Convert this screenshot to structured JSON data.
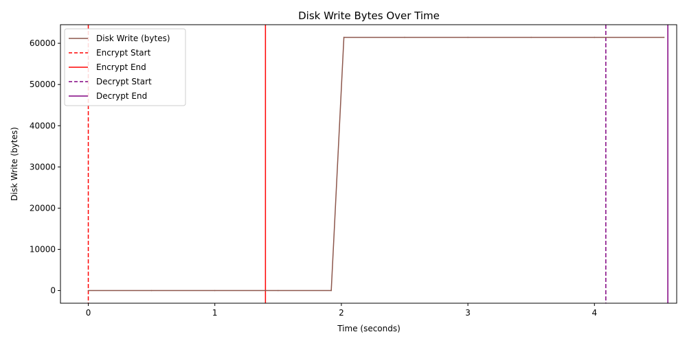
{
  "chart_data": {
    "type": "line",
    "title": "Disk Write Bytes Over Time",
    "xlabel": "Time (seconds)",
    "ylabel": "Disk Write (bytes)",
    "xlim": [
      -0.22,
      4.65
    ],
    "ylim": [
      -3072,
      64512
    ],
    "xticks": [
      0,
      1,
      2,
      3,
      4
    ],
    "yticks": [
      0,
      10000,
      20000,
      30000,
      40000,
      50000,
      60000
    ],
    "grid": false,
    "legend_position": "top-left",
    "series": [
      {
        "name": "Disk Write (bytes)",
        "color": "#8c564b",
        "x": [
          0,
          0.5,
          1.0,
          1.5,
          1.92,
          2.02,
          2.5,
          3.0,
          3.5,
          4.0,
          4.55
        ],
        "values": [
          0,
          0,
          0,
          0,
          0,
          61440,
          61440,
          61440,
          61440,
          61440,
          61440
        ]
      }
    ],
    "markers": [
      {
        "name": "Encrypt Start",
        "x": 0.0,
        "color": "#ff0000",
        "style": "dashed"
      },
      {
        "name": "Encrypt End",
        "x": 1.4,
        "color": "#ff0000",
        "style": "solid"
      },
      {
        "name": "Decrypt Start",
        "x": 4.09,
        "color": "#800080",
        "style": "dashed"
      },
      {
        "name": "Decrypt End",
        "x": 4.58,
        "color": "#800080",
        "style": "solid"
      }
    ]
  }
}
